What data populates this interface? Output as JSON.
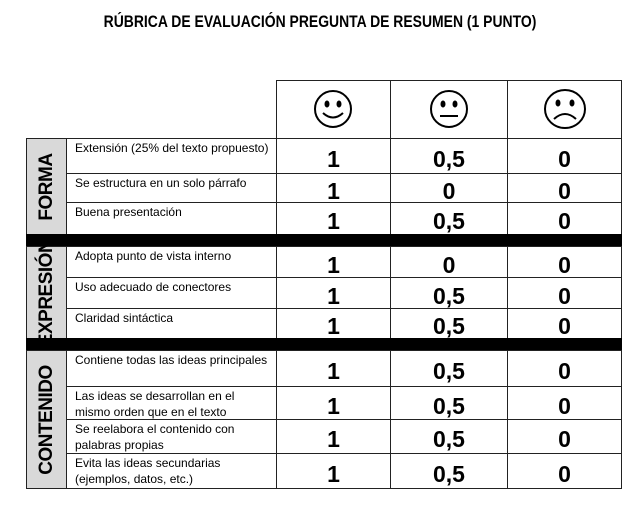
{
  "title": "RÚBRICA DE EVALUACIÓN PREGUNTA DE RESUMEN (1 PUNTO)",
  "groups": [
    {
      "name": "FORMA",
      "rows": [
        {
          "criterion": "Extensión (25% del texto propuesto)",
          "scores": [
            "1",
            "0,5",
            "0"
          ]
        },
        {
          "criterion": "Se estructura en un solo párrafo",
          "scores": [
            "1",
            "0",
            "0"
          ]
        },
        {
          "criterion": "Buena presentación",
          "scores": [
            "1",
            "0,5",
            "0"
          ]
        }
      ]
    },
    {
      "name": "EXPRESIÓN",
      "rows": [
        {
          "criterion": "Adopta punto de vista interno",
          "scores": [
            "1",
            "0",
            "0"
          ]
        },
        {
          "criterion": "Uso adecuado de conectores",
          "scores": [
            "1",
            "0,5",
            "0"
          ]
        },
        {
          "criterion": "Claridad sintáctica",
          "scores": [
            "1",
            "0,5",
            "0"
          ]
        }
      ]
    },
    {
      "name": "CONTENIDO",
      "rows": [
        {
          "criterion": "Contiene todas las ideas principales",
          "scores": [
            "1",
            "0,5",
            "0"
          ]
        },
        {
          "criterion": "Las ideas se desarrollan en el mismo orden que en el texto",
          "scores": [
            "1",
            "0,5",
            "0"
          ]
        },
        {
          "criterion": "Se reelabora el contenido con palabras propias",
          "scores": [
            "1",
            "0,5",
            "0"
          ]
        },
        {
          "criterion": "Evita las ideas secundarias (ejemplos, datos, etc.)",
          "scores": [
            "1",
            "0,5",
            "0"
          ]
        }
      ]
    }
  ]
}
